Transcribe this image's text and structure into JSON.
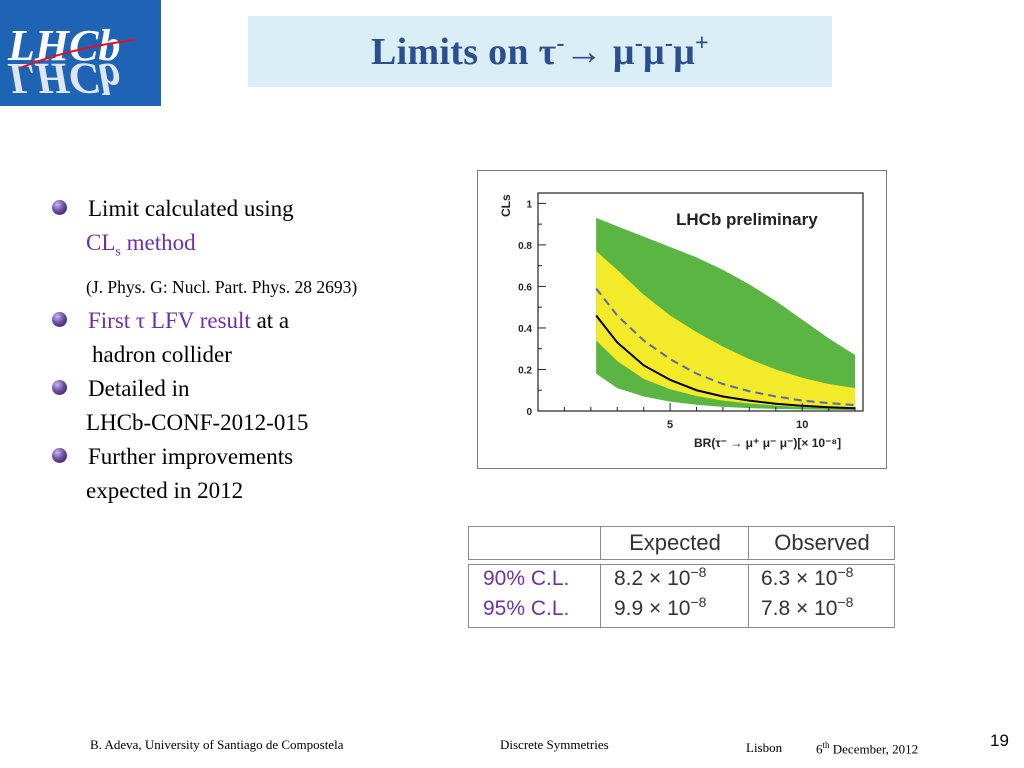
{
  "logo": {
    "text": "LHCb"
  },
  "title": {
    "prefix": "Limits on ",
    "tau": "τ",
    "tau_charge": "-",
    "arrow": "→ ",
    "mu": "μ",
    "mu1_charge": "-",
    "mu2_charge": "-",
    "mu3_charge": "+"
  },
  "bullets": {
    "b1_line1": "Limit calculated using",
    "b1_cl": "CL",
    "b1_s": "s",
    "b1_method": " method",
    "b1_ref": "(J. Phys. G: Nucl. Part. Phys. 28 2693)",
    "b2_first": "First τ LFV result",
    "b2_rest": " at a",
    "b2_line2": "hadron collider",
    "b3_line1": "Detailed in",
    "b3_line2": "LHCb-CONF-2012-015",
    "b4_line1": "Further improvements",
    "b4_line2": "expected in 2012"
  },
  "chart_data": {
    "type": "area",
    "annotation": "LHCb preliminary",
    "ylabel": "CLs",
    "xlabel": "BR(τ⁻ → μ⁺ μ⁻ μ⁻)[× 10⁻⁸]",
    "xlim": [
      0,
      12.3
    ],
    "ylim": [
      0,
      1.05
    ],
    "xticks": [
      5,
      10
    ],
    "yticks": [
      0.2,
      0.4,
      0.6,
      0.8,
      1
    ],
    "x": [
      2.2,
      3,
      4,
      5,
      6,
      7,
      8,
      9,
      10,
      11,
      12
    ],
    "series": [
      {
        "values": [
          0.46,
          0.33,
          0.22,
          0.15,
          0.1,
          0.07,
          0.05,
          0.035,
          0.025,
          0.018,
          0.013
        ],
        "color": "#000000",
        "style": "solid"
      },
      {
        "values": [
          0.59,
          0.46,
          0.34,
          0.25,
          0.18,
          0.13,
          0.095,
          0.07,
          0.05,
          0.038,
          0.028
        ],
        "color": "#5a6aa6",
        "style": "dashed"
      }
    ],
    "bands": [
      {
        "lower": [
          0.18,
          0.11,
          0.07,
          0.045,
          0.03,
          0.02,
          0.014,
          0.01,
          0.008,
          0.006,
          0.004
        ],
        "upper": [
          0.93,
          0.89,
          0.84,
          0.79,
          0.74,
          0.68,
          0.61,
          0.53,
          0.44,
          0.35,
          0.27
        ],
        "color": "#5ab543"
      },
      {
        "lower": [
          0.34,
          0.24,
          0.155,
          0.105,
          0.072,
          0.05,
          0.036,
          0.026,
          0.019,
          0.014,
          0.01
        ],
        "upper": [
          0.77,
          0.68,
          0.56,
          0.46,
          0.38,
          0.31,
          0.25,
          0.2,
          0.16,
          0.13,
          0.11
        ],
        "color": "#f3ea2a"
      }
    ],
    "colors": {
      "outer_band": "#5ab543",
      "inner_band": "#f3ea2a"
    }
  },
  "limits_table": {
    "headers": [
      "Expected",
      "Observed"
    ],
    "rows": [
      {
        "cl": "90% C.L.",
        "expected": "8.2 × 10",
        "expected_exp": "−8",
        "observed": "6.3 × 10",
        "observed_exp": "−8"
      },
      {
        "cl": "95% C.L.",
        "expected": "9.9 × 10",
        "expected_exp": "−8",
        "observed": "7.8 × 10",
        "observed_exp": "−8"
      }
    ]
  },
  "footer": {
    "author": "B. Adeva, University of  Santiago de Compostela",
    "event": "Discrete  Symmetries",
    "place": "Lisbon",
    "date_day": "6",
    "date_sup": "th",
    "date_rest": " December, 2012",
    "page": "19"
  }
}
